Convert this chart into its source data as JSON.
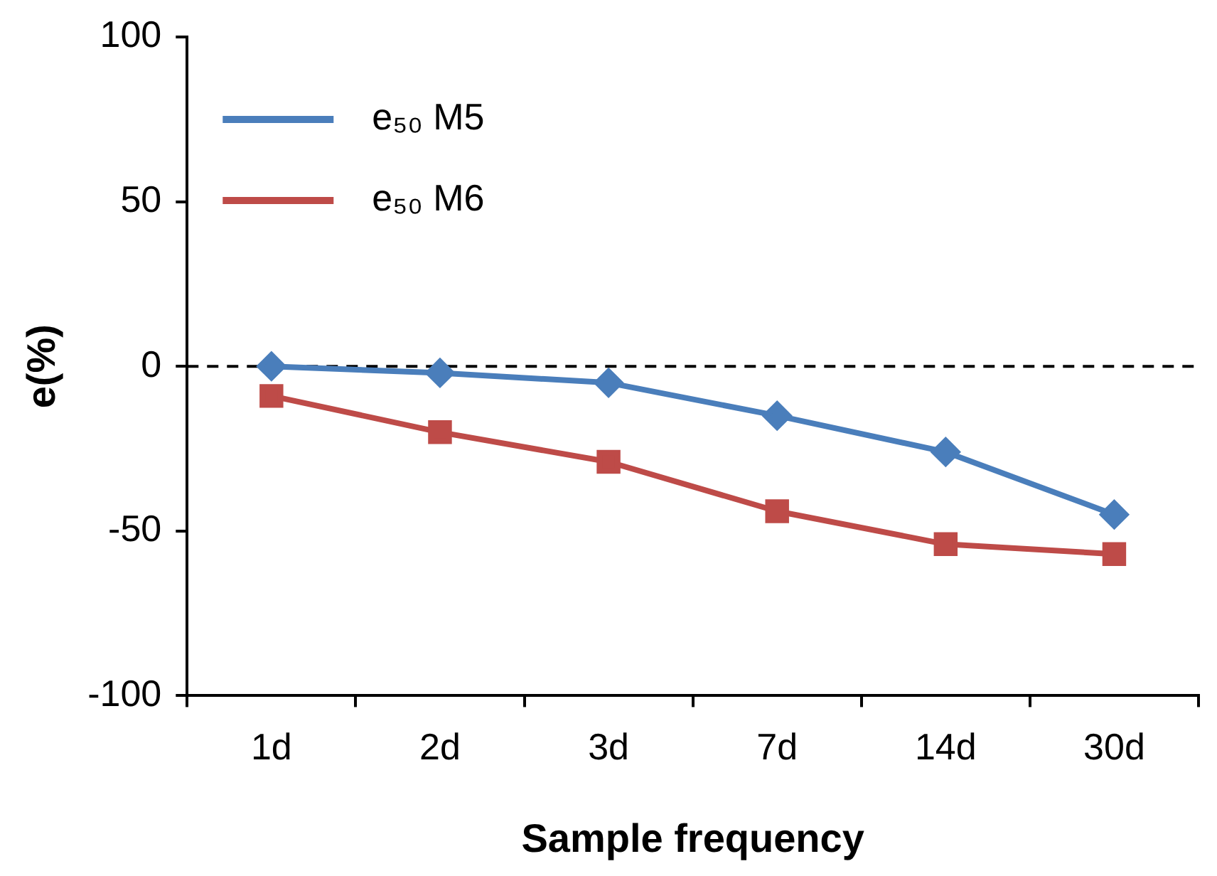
{
  "chart_data": {
    "type": "line",
    "xlabel": "Sample frequency",
    "ylabel": "e(%)",
    "categories": [
      "1d",
      "2d",
      "3d",
      "7d",
      "14d",
      "30d"
    ],
    "series": [
      {
        "name": "e₅₀ M5",
        "color": "#4a7ebb",
        "marker": "diamond",
        "values": [
          0,
          -2,
          -5,
          -15,
          -26,
          -45
        ]
      },
      {
        "name": "e₅₀ M6",
        "color": "#be4b48",
        "marker": "square",
        "values": [
          -9,
          -20,
          -29,
          -44,
          -54,
          -57
        ]
      }
    ],
    "ylim": [
      -100,
      100
    ],
    "yticks": [
      -100,
      -50,
      0,
      50,
      100
    ],
    "grid": false,
    "legend": "top left",
    "ref_lines": [
      {
        "axis": "y",
        "value": 0,
        "color": "#000000",
        "line_style": "dashed"
      }
    ]
  }
}
